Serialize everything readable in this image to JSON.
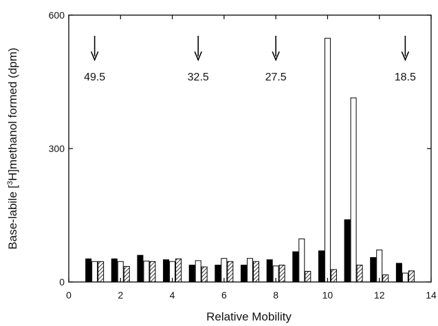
{
  "chart_data": {
    "type": "bar",
    "title": "",
    "xlabel": "Relative Mobility",
    "ylabel": "Base-labile [³H]methanol formed (dpm)",
    "ylabel_parts": {
      "before": "Base-labile [",
      "superscript": "3",
      "after": "H]methanol formed (dpm)"
    },
    "xlim": [
      0,
      14
    ],
    "ylim": [
      0,
      600
    ],
    "x_ticks": [
      0,
      2,
      4,
      6,
      8,
      10,
      12,
      14
    ],
    "y_ticks": [
      0,
      300,
      600
    ],
    "grid": false,
    "legend": "none",
    "x": [
      1,
      2,
      3,
      4,
      5,
      6,
      7,
      8,
      9,
      10,
      11,
      12,
      13
    ],
    "series": [
      {
        "style": "solid",
        "color": "#000000",
        "values": [
          52,
          52,
          60,
          50,
          38,
          38,
          38,
          50,
          68,
          70,
          140,
          55,
          42
        ]
      },
      {
        "style": "open",
        "color": "#ffffff",
        "values": [
          46,
          46,
          47,
          46,
          48,
          53,
          53,
          36,
          97,
          548,
          414,
          72,
          20
        ]
      },
      {
        "style": "hatched",
        "color": "#ffffff",
        "values": [
          46,
          35,
          46,
          52,
          34,
          46,
          46,
          38,
          24,
          28,
          38,
          16,
          25
        ]
      }
    ],
    "annotations": [
      {
        "label": "49.5",
        "x": 1
      },
      {
        "label": "32.5",
        "x": 5
      },
      {
        "label": "27.5",
        "x": 8
      },
      {
        "label": "18.5",
        "x": 13
      }
    ]
  }
}
